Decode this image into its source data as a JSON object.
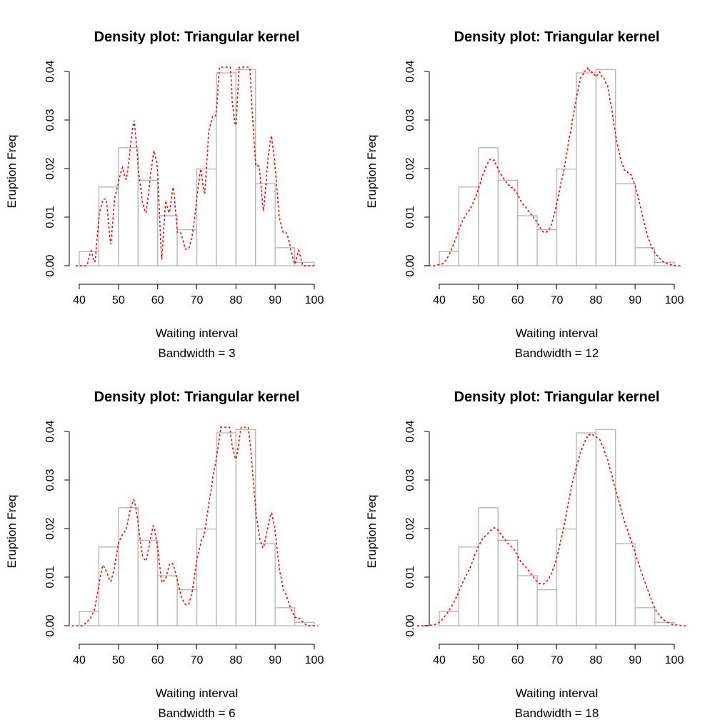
{
  "chart_data": [
    {
      "type": "bar",
      "title": "Density plot: Triangular kernel",
      "xlabel": "Waiting interval",
      "subtitle": "Bandwidth = 3",
      "ylabel": "Eruption Freq",
      "bandwidth": 3,
      "xlim": [
        40,
        100
      ],
      "ylim": [
        0,
        0.04
      ],
      "x_ticks": [
        "40",
        "50",
        "60",
        "70",
        "80",
        "90",
        "100"
      ],
      "y_ticks": [
        "0.00",
        "0.01",
        "0.02",
        "0.03",
        "0.04"
      ],
      "bin_edges": [
        40,
        45,
        50,
        55,
        60,
        65,
        70,
        75,
        80,
        85,
        90,
        95,
        100
      ],
      "values": [
        0.0029,
        0.0162,
        0.0243,
        0.0176,
        0.0103,
        0.0074,
        0.0199,
        0.0397,
        0.0404,
        0.0169,
        0.0037,
        0.0007
      ],
      "line_color": "#ff0000",
      "bar_color": "#b3b3b3"
    },
    {
      "type": "bar",
      "title": "Density plot: Triangular kernel",
      "xlabel": "Waiting interval",
      "subtitle": "Bandwidth = 12",
      "ylabel": "Eruption Freq",
      "bandwidth": 12,
      "xlim": [
        40,
        100
      ],
      "ylim": [
        0,
        0.04
      ],
      "x_ticks": [
        "40",
        "50",
        "60",
        "70",
        "80",
        "90",
        "100"
      ],
      "y_ticks": [
        "0.00",
        "0.01",
        "0.02",
        "0.03",
        "0.04"
      ],
      "bin_edges": [
        40,
        45,
        50,
        55,
        60,
        65,
        70,
        75,
        80,
        85,
        90,
        95,
        100
      ],
      "values": [
        0.0029,
        0.0162,
        0.0243,
        0.0176,
        0.0103,
        0.0074,
        0.0199,
        0.0397,
        0.0404,
        0.0169,
        0.0037,
        0.0007
      ],
      "line_color": "#ff0000",
      "bar_color": "#b3b3b3"
    },
    {
      "type": "bar",
      "title": "Density plot: Triangular kernel",
      "xlabel": "Waiting interval",
      "subtitle": "Bandwidth = 6",
      "ylabel": "Eruption Freq",
      "bandwidth": 6,
      "xlim": [
        40,
        100
      ],
      "ylim": [
        0,
        0.04
      ],
      "x_ticks": [
        "40",
        "50",
        "60",
        "70",
        "80",
        "90",
        "100"
      ],
      "y_ticks": [
        "0.00",
        "0.01",
        "0.02",
        "0.03",
        "0.04"
      ],
      "bin_edges": [
        40,
        45,
        50,
        55,
        60,
        65,
        70,
        75,
        80,
        85,
        90,
        95,
        100
      ],
      "values": [
        0.0029,
        0.0162,
        0.0243,
        0.0176,
        0.0103,
        0.0074,
        0.0199,
        0.0397,
        0.0404,
        0.0169,
        0.0037,
        0.0007
      ],
      "line_color": "#ff0000",
      "bar_color": "#b3b3b3"
    },
    {
      "type": "bar",
      "title": "Density plot: Triangular kernel",
      "xlabel": "Waiting interval",
      "subtitle": "Bandwidth = 18",
      "ylabel": "Eruption Freq",
      "bandwidth": 18,
      "xlim": [
        40,
        100
      ],
      "ylim": [
        0,
        0.04
      ],
      "x_ticks": [
        "40",
        "50",
        "60",
        "70",
        "80",
        "90",
        "100"
      ],
      "y_ticks": [
        "0.00",
        "0.01",
        "0.02",
        "0.03",
        "0.04"
      ],
      "bin_edges": [
        40,
        45,
        50,
        55,
        60,
        65,
        70,
        75,
        80,
        85,
        90,
        95,
        100
      ],
      "values": [
        0.0029,
        0.0162,
        0.0243,
        0.0176,
        0.0103,
        0.0074,
        0.0199,
        0.0397,
        0.0404,
        0.0169,
        0.0037,
        0.0007
      ],
      "line_color": "#ff0000",
      "bar_color": "#b3b3b3"
    }
  ]
}
